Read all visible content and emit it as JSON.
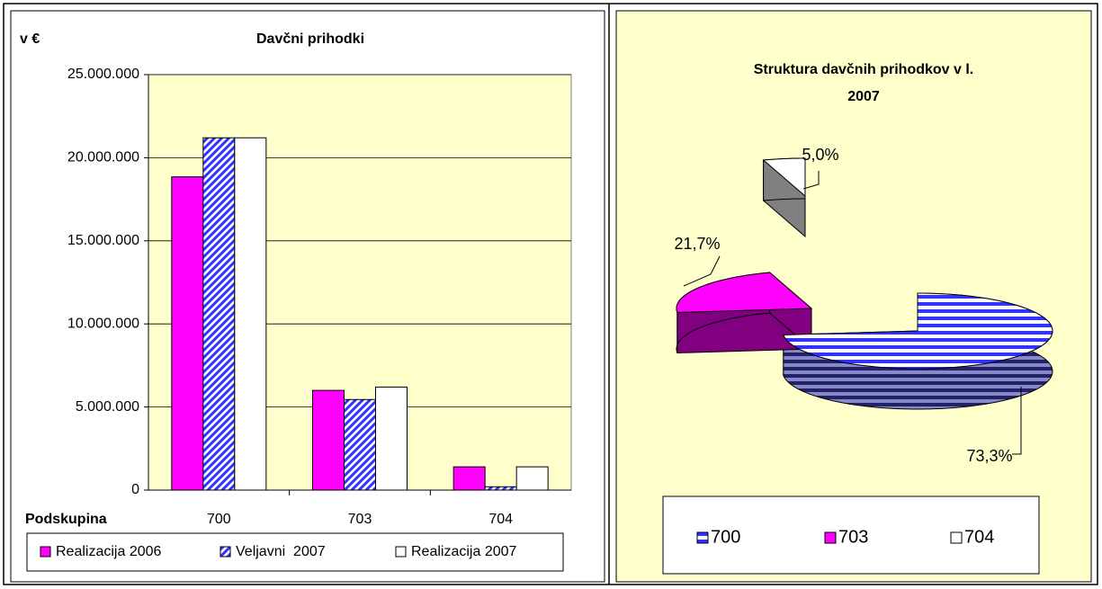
{
  "chart_data": [
    {
      "type": "bar",
      "title": "Davčni prihodki",
      "y_label": "v €",
      "x_label": "Podskupina",
      "categories": [
        "700",
        "703",
        "704"
      ],
      "series": [
        {
          "name": "Realizacija 2006",
          "color": "#ff00ff",
          "pattern": "solid",
          "values": [
            18850000,
            6000000,
            1400000
          ]
        },
        {
          "name": "Veljavni  2007",
          "color": "#3333ff",
          "pattern": "diagonal",
          "values": [
            21200000,
            5450000,
            200000
          ]
        },
        {
          "name": "Realizacija 2007",
          "color": "#ffffff",
          "pattern": "solid",
          "values": [
            21200000,
            6200000,
            1400000
          ]
        }
      ],
      "ylim": [
        0,
        25000000
      ],
      "yticks": [
        0,
        {
          "value": 5000000,
          "label": "5.000.000"
        },
        {
          "value": 10000000,
          "label": "10.000.000"
        },
        {
          "value": 15000000,
          "label": "15.000.000"
        },
        {
          "value": 20000000,
          "label": "20.000.000"
        },
        {
          "value": 25000000,
          "label": "25.000.000"
        }
      ],
      "grid": true,
      "legend": "bottom",
      "background": "#ffffcc"
    },
    {
      "type": "pie",
      "title": "Struktura davčnih prihodkov v l. 2007",
      "categories": [
        "700",
        "703",
        "704"
      ],
      "values": [
        73.3,
        21.7,
        5.0
      ],
      "value_labels": [
        "73,3%",
        "21,7%",
        "5,0%"
      ],
      "colors": [
        "#3333ff",
        "#ff00ff",
        "#ffffff"
      ],
      "patterns": [
        "horizontal",
        "solid",
        "solid"
      ],
      "legend": "bottom",
      "background": "#ffffcc"
    }
  ]
}
